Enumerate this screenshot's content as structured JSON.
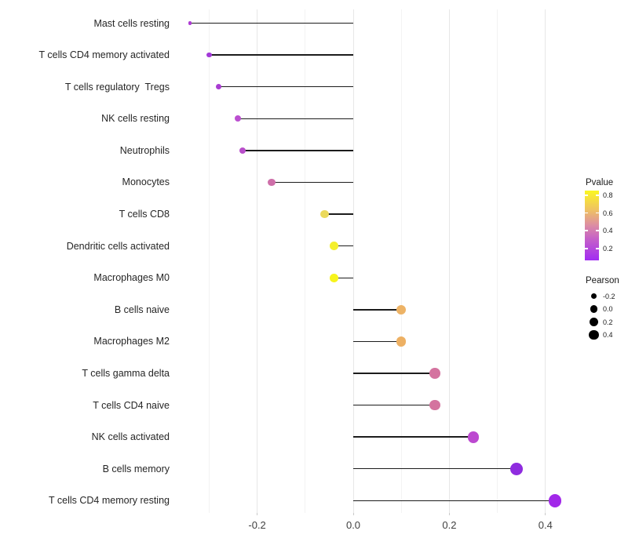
{
  "chart_data": {
    "type": "lollipop",
    "title": "",
    "xlabel": "",
    "ylabel": "",
    "orientation": "horizontal",
    "grid": "on",
    "xlim": [
      -0.375,
      0.46
    ],
    "x_major_ticks": [
      -0.2,
      0.0,
      0.2,
      0.4
    ],
    "x_major_tick_labels": [
      "-0.2",
      "0.0",
      "0.2",
      "0.4"
    ],
    "x_minor_ticks": [
      -0.3,
      -0.1,
      0.1,
      0.3
    ],
    "rows": [
      {
        "label": "Mast cells resting",
        "pearson": -0.34,
        "color": "#ae3bd4",
        "radius": 2.4
      },
      {
        "label": "T cells CD4 memory activated",
        "pearson": -0.3,
        "color": "#a338d8",
        "radius": 3.2
      },
      {
        "label": "T cells regulatory  Tregs",
        "pearson": -0.28,
        "color": "#a93cd2",
        "radius": 3.6
      },
      {
        "label": "NK cells resting",
        "pearson": -0.24,
        "color": "#bb4fd0",
        "radius": 4.0
      },
      {
        "label": "Neutrophils",
        "pearson": -0.23,
        "color": "#b84eca",
        "radius": 4.1
      },
      {
        "label": "Monocytes",
        "pearson": -0.17,
        "color": "#ce6fa9",
        "radius": 4.6
      },
      {
        "label": "T cells CD8",
        "pearson": -0.06,
        "color": "#ebd95b",
        "radius": 5.3
      },
      {
        "label": "Dendritic cells activated",
        "pearson": -0.04,
        "color": "#f4ef2d",
        "radius": 5.4
      },
      {
        "label": "Macrophages M0",
        "pearson": -0.04,
        "color": "#f7f41c",
        "radius": 5.4
      },
      {
        "label": "B cells naive",
        "pearson": 0.1,
        "color": "#edb366",
        "radius": 6.2
      },
      {
        "label": "Macrophages M2",
        "pearson": 0.1,
        "color": "#edb063",
        "radius": 6.3
      },
      {
        "label": "T cells gamma delta",
        "pearson": 0.17,
        "color": "#d4739f",
        "radius": 6.8
      },
      {
        "label": "T cells CD4 naive",
        "pearson": 0.17,
        "color": "#d4739f",
        "radius": 6.8
      },
      {
        "label": "NK cells activated",
        "pearson": 0.25,
        "color": "#bc49d0",
        "radius": 7.4
      },
      {
        "label": "B cells memory",
        "pearson": 0.34,
        "color": "#8f2cdf",
        "radius": 7.9
      },
      {
        "label": "T cells CD4 memory resting",
        "pearson": 0.42,
        "color": "#a228e9",
        "radius": 8.3
      }
    ],
    "legend": {
      "position": "right",
      "pvalue": {
        "title": "Pvalue",
        "tick_labels": [
          "0.8",
          "0.6",
          "0.4",
          "0.2"
        ],
        "tick_values": [
          0.8,
          0.6,
          0.4,
          0.2
        ],
        "range": [
          0.07,
          0.85
        ],
        "gradient_stops": [
          {
            "color": "#a22cf2",
            "pos": 0
          },
          {
            "color": "#c45fc9",
            "pos": 30
          },
          {
            "color": "#dc8ca4",
            "pos": 50
          },
          {
            "color": "#efc163",
            "pos": 72
          },
          {
            "color": "#fbf722",
            "pos": 100
          }
        ]
      },
      "pearson": {
        "title": "Pearson",
        "items": [
          {
            "label": "-0.2",
            "radius": 3.8
          },
          {
            "label": "0.0",
            "radius": 4.8
          },
          {
            "label": "0.2",
            "radius": 5.6
          },
          {
            "label": "0.4",
            "radius": 6.3
          }
        ]
      }
    }
  }
}
